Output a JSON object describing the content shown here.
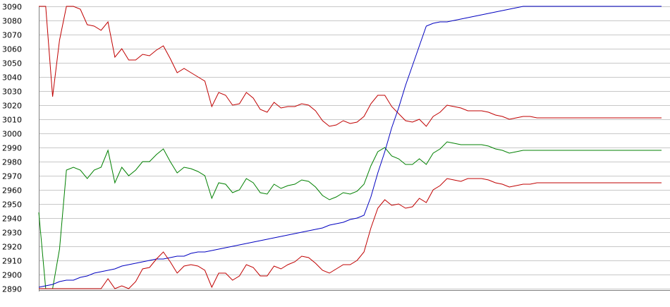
{
  "chart_data": {
    "type": "line",
    "title": "",
    "xlabel": "",
    "ylabel": "",
    "ylim": [
      2890,
      3090
    ],
    "y_ticks": [
      2890,
      2900,
      2910,
      2920,
      2930,
      2940,
      2950,
      2960,
      2970,
      2980,
      2990,
      3000,
      3010,
      3020,
      3030,
      3040,
      3050,
      3060,
      3070,
      3080,
      3090
    ],
    "grid": "horizontal",
    "legend": "none",
    "x": [
      0,
      1,
      2,
      3,
      4,
      5,
      6,
      7,
      8,
      9,
      10,
      11,
      12,
      13,
      14,
      15,
      16,
      17,
      18,
      19,
      20,
      21,
      22,
      23,
      24,
      25,
      26,
      27,
      28,
      29,
      30,
      31,
      32,
      33,
      34,
      35,
      36,
      37,
      38,
      39,
      40,
      41,
      42,
      43,
      44,
      45,
      46,
      47,
      48,
      49,
      50,
      51,
      52,
      53,
      54,
      55,
      56,
      57,
      58,
      59,
      60,
      61,
      62,
      63,
      64,
      65,
      66,
      67,
      68,
      69,
      70,
      71,
      72,
      73,
      74,
      75,
      76,
      77,
      78,
      79,
      80,
      81,
      82,
      83,
      84,
      85,
      86,
      87,
      88,
      89,
      90
    ],
    "series": [
      {
        "color": "#c00000",
        "values": [
          3090,
          3090,
          3026,
          3066,
          3090,
          3090,
          3088,
          3077,
          3076,
          3073,
          3079,
          3054,
          3060,
          3052,
          3052,
          3056,
          3055,
          3059,
          3062,
          3053,
          3043,
          3046,
          3043,
          3040,
          3037,
          3019,
          3029,
          3027,
          3020,
          3021,
          3029,
          3025,
          3017,
          3015,
          3022,
          3018,
          3019,
          3019,
          3021,
          3020,
          3016,
          3009,
          3005,
          3006,
          3009,
          3007,
          3008,
          3012,
          3021,
          3027,
          3027,
          3019,
          3014,
          3009,
          3008,
          3010,
          3005,
          3012,
          3015,
          3020,
          3019,
          3018,
          3016,
          3016,
          3016,
          3015,
          3013,
          3012,
          3010,
          3011,
          3012,
          3012,
          3011,
          3011,
          3011,
          3011,
          3011,
          3011,
          3011,
          3011,
          3011,
          3011,
          3011,
          3011,
          3011,
          3011,
          3011,
          3011,
          3011,
          3011,
          3011
        ]
      },
      {
        "color": "#008000",
        "values": [
          2944,
          2890,
          2890,
          2918,
          2974,
          2976,
          2974,
          2968,
          2974,
          2976,
          2988,
          2965,
          2976,
          2970,
          2974,
          2980,
          2980,
          2985,
          2989,
          2980,
          2972,
          2976,
          2975,
          2973,
          2970,
          2954,
          2965,
          2964,
          2958,
          2960,
          2968,
          2965,
          2958,
          2957,
          2964,
          2961,
          2963,
          2964,
          2967,
          2966,
          2962,
          2956,
          2953,
          2955,
          2958,
          2957,
          2959,
          2964,
          2977,
          2987,
          2990,
          2984,
          2982,
          2978,
          2978,
          2982,
          2978,
          2986,
          2989,
          2994,
          2993,
          2992,
          2992,
          2992,
          2992,
          2991,
          2989,
          2988,
          2986,
          2987,
          2988,
          2988,
          2988,
          2988,
          2988,
          2988,
          2988,
          2988,
          2988,
          2988,
          2988,
          2988,
          2988,
          2988,
          2988,
          2988,
          2988,
          2988,
          2988,
          2988,
          2988
        ]
      },
      {
        "color": "#0000c0",
        "values": [
          2891,
          2892,
          2893,
          2895,
          2896,
          2896,
          2898,
          2899,
          2901,
          2902,
          2903,
          2904,
          2906,
          2907,
          2908,
          2909,
          2910,
          2911,
          2911,
          2912,
          2913,
          2913,
          2915,
          2916,
          2916,
          2917,
          2918,
          2919,
          2920,
          2921,
          2922,
          2923,
          2924,
          2925,
          2926,
          2927,
          2928,
          2929,
          2930,
          2931,
          2932,
          2933,
          2935,
          2936,
          2937,
          2939,
          2940,
          2942,
          2955,
          2972,
          2987,
          3004,
          3018,
          3034,
          3048,
          3062,
          3076,
          3078,
          3079,
          3079,
          3080,
          3081,
          3082,
          3083,
          3084,
          3085,
          3086,
          3087,
          3088,
          3089,
          3090,
          3090,
          3090,
          3090,
          3090,
          3090,
          3090,
          3090,
          3090,
          3090,
          3090,
          3090,
          3090,
          3090,
          3090,
          3090,
          3090,
          3090,
          3090,
          3090,
          3090
        ]
      },
      {
        "color": "#c00000",
        "values": [
          2890,
          2890,
          2890,
          2890,
          2890,
          2890,
          2890,
          2890,
          2890,
          2890,
          2897,
          2890,
          2892,
          2890,
          2895,
          2904,
          2905,
          2911,
          2916,
          2909,
          2901,
          2906,
          2907,
          2906,
          2903,
          2891,
          2901,
          2901,
          2896,
          2899,
          2907,
          2905,
          2899,
          2899,
          2906,
          2904,
          2907,
          2909,
          2913,
          2912,
          2908,
          2903,
          2901,
          2904,
          2907,
          2907,
          2910,
          2916,
          2933,
          2947,
          2953,
          2949,
          2950,
          2947,
          2948,
          2954,
          2951,
          2960,
          2963,
          2968,
          2967,
          2966,
          2968,
          2968,
          2968,
          2967,
          2965,
          2964,
          2962,
          2963,
          2964,
          2964,
          2965,
          2965,
          2965,
          2965,
          2965,
          2965,
          2965,
          2965,
          2965,
          2965,
          2965,
          2965,
          2965,
          2965,
          2965,
          2965,
          2965,
          2965,
          2965
        ]
      }
    ]
  }
}
